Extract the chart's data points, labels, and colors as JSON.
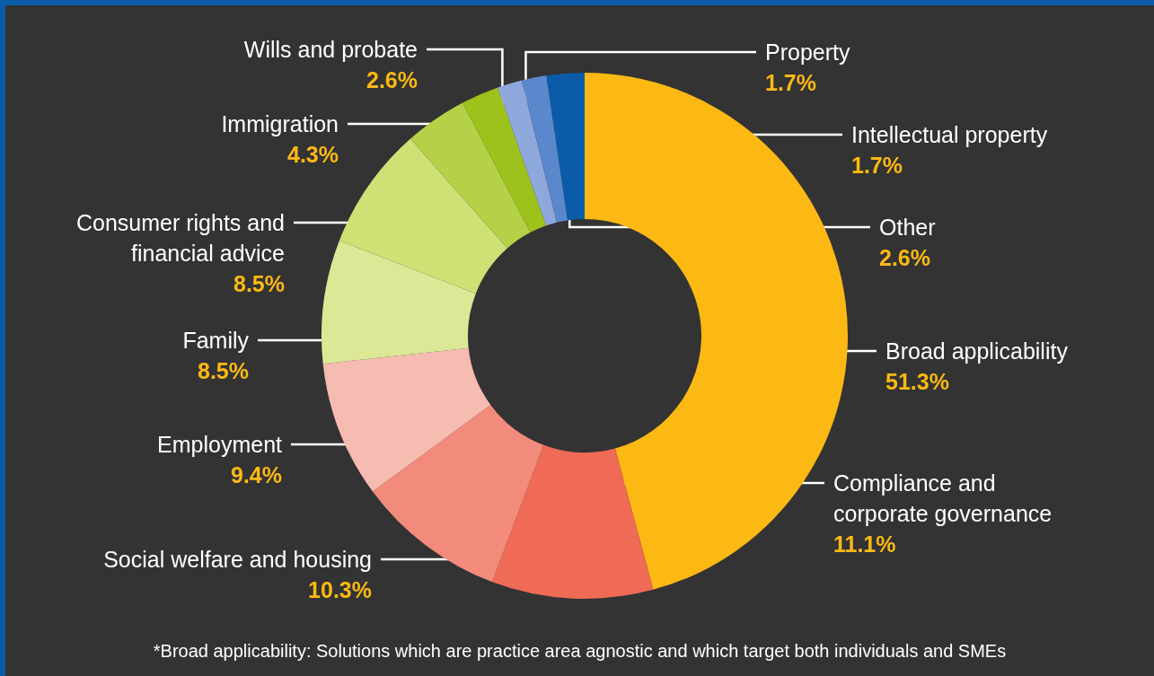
{
  "chart_data": {
    "type": "donut",
    "categories": [
      "Broad applicability",
      "Compliance and\ncorporate governance",
      "Social welfare and housing",
      "Employment",
      "Family",
      "Consumer rights and\nfinancial advice",
      "Immigration",
      "Wills and probate",
      "Property",
      "Intellectual property",
      "Other"
    ],
    "values": [
      51.3,
      11.1,
      10.3,
      9.4,
      8.5,
      8.5,
      4.3,
      2.6,
      1.7,
      1.7,
      2.6
    ],
    "value_labels": [
      "51.3%",
      "11.1%",
      "10.3%",
      "9.4%",
      "8.5%",
      "8.5%",
      "4.3%",
      "2.6%",
      "1.7%",
      "1.7%",
      "2.6%"
    ],
    "colors": [
      "#fdb913",
      "#ef6b55",
      "#f28b7b",
      "#f6bbb1",
      "#dde896",
      "#cfe075",
      "#b5d147",
      "#9dc21b",
      "#8fa8dc",
      "#5b87cc",
      "#0a5ca8"
    ],
    "annotations": [
      "*Broad applicability: Solutions which are practice area agnostic and which target both individuals and SMEs"
    ]
  }
}
